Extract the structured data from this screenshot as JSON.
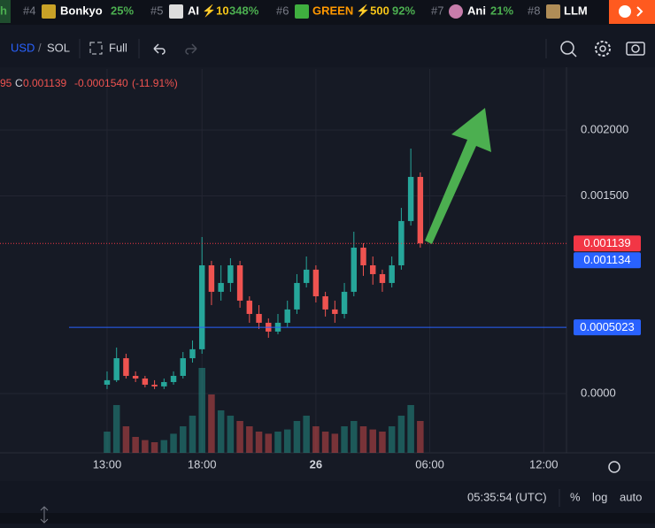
{
  "ticker": {
    "lead": "h",
    "items": [
      {
        "rank": "#4",
        "name": "Bonkyo",
        "change": "25%"
      },
      {
        "rank": "#5",
        "name": "AI",
        "boost": "⚡10",
        "change": "348%"
      },
      {
        "rank": "#6",
        "name": "GREEN",
        "boost": "⚡500",
        "change": "92%"
      },
      {
        "rank": "#7",
        "name": "Ani",
        "change": "21%"
      },
      {
        "rank": "#8",
        "name": "LLM"
      }
    ]
  },
  "toolbar": {
    "currency": "USD",
    "separator": "/",
    "quote": "SOL",
    "fullscreen": "Full"
  },
  "legend": {
    "cut": "95",
    "close_label": "C",
    "close": "0.001139",
    "change": "-0.0001540",
    "change_pct": "(-11.91%)"
  },
  "status": {
    "clock": "05:35:54 (UTC)",
    "percent": "%",
    "log": "log",
    "auto": "auto"
  },
  "chart_data": {
    "type": "candlestick",
    "x": [
      13,
      13.5,
      14,
      14.5,
      15,
      15.5,
      16,
      16.5,
      17,
      17.5,
      18,
      18.5,
      19,
      19.5,
      20,
      20.5,
      21,
      21.5,
      22,
      22.5,
      23,
      23.5,
      24,
      24.5,
      25,
      25.5,
      26,
      26.5,
      27,
      27.5,
      28,
      28.5,
      29,
      29.5
    ],
    "open": [
      6.7e-05,
      0.000101,
      0.000268,
      0.000134,
      0.000114,
      6.7e-05,
      5.4e-05,
      8.7e-05,
      0.000134,
      0.000268,
      0.000336,
      0.000973,
      0.000772,
      0.000839,
      0.000973,
      0.000705,
      0.000604,
      0.000537,
      0.00047,
      0.000537,
      0.000638,
      0.000839,
      0.00094,
      0.000738,
      0.000638,
      0.000604,
      0.000772,
      0.001107,
      0.000973,
      0.000906,
      0.000839,
      0.000973,
      0.001309,
      0.001644
    ],
    "high": [
      0.000168,
      0.000349,
      0.000302,
      0.000168,
      0.000134,
      0.000101,
      0.000114,
      0.000168,
      0.000315,
      0.000403,
      0.001188,
      0.001007,
      0.000973,
      0.001027,
      0.001007,
      0.000738,
      0.000671,
      0.00057,
      0.000604,
      0.000705,
      0.000906,
      0.00104,
      0.000973,
      0.000772,
      0.000705,
      0.000839,
      0.001228,
      0.001141,
      0.00104,
      0.00094,
      0.00104,
      0.001409,
      0.001859,
      0.001678
    ],
    "low": [
      3.4e-05,
      8.7e-05,
      0.000114,
      8.7e-05,
      4.7e-05,
      3.4e-05,
      3.4e-05,
      6.7e-05,
      0.000114,
      0.000235,
      0.000302,
      0.000671,
      0.000705,
      0.000772,
      0.000651,
      0.000537,
      0.00049,
      0.000423,
      0.00045,
      0.000503,
      0.000604,
      0.000805,
      0.000691,
      0.000584,
      0.000537,
      0.00057,
      0.000738,
      0.000893,
      0.000826,
      0.000772,
      0.000805,
      0.00094,
      0.001275,
      0.001107
    ],
    "close": [
      0.000101,
      0.000268,
      0.000134,
      0.000114,
      6.7e-05,
      5.4e-05,
      8.7e-05,
      0.000134,
      0.000268,
      0.000336,
      0.000973,
      0.000772,
      0.000839,
      0.000973,
      0.000705,
      0.000604,
      0.000537,
      0.00047,
      0.000537,
      0.000638,
      0.000839,
      0.00094,
      0.000738,
      0.000638,
      0.000604,
      0.000772,
      0.001107,
      0.000973,
      0.000906,
      0.000839,
      0.000973,
      0.001309,
      0.001644,
      0.001139
    ],
    "volume": [
      20,
      45,
      25,
      15,
      12,
      10,
      12,
      18,
      25,
      35,
      80,
      55,
      40,
      35,
      30,
      25,
      20,
      18,
      20,
      22,
      30,
      35,
      25,
      20,
      18,
      25,
      30,
      25,
      22,
      20,
      25,
      35,
      45,
      30
    ],
    "up_color": "#26a69a",
    "down_color": "#ef5350",
    "xlim": [
      7.36,
      37.2
    ],
    "xticks": [
      {
        "value": 13,
        "label": "13:00"
      },
      {
        "value": 18,
        "label": "18:00"
      },
      {
        "value": 24,
        "label": "26"
      },
      {
        "value": 30,
        "label": "06:00"
      },
      {
        "value": 36,
        "label": "12:00"
      }
    ],
    "ylim": [
      -0.00045,
      0.002463
    ],
    "yticks": [
      {
        "value": 0.002,
        "label": "0.002000"
      },
      {
        "value": 0.0015,
        "label": "0.001500"
      },
      {
        "value": 0,
        "label": "0.0000"
      }
    ],
    "volume_lim": [
      0,
      100
    ],
    "grid": true,
    "price_lines": [
      {
        "value": 0.001139,
        "color": "#f23645",
        "style": "dotted"
      },
      {
        "value": 0.001134,
        "color": "#2962ff",
        "style": "none"
      },
      {
        "value": 0.0005023,
        "color": "#2962ff",
        "style": "solid"
      }
    ]
  }
}
